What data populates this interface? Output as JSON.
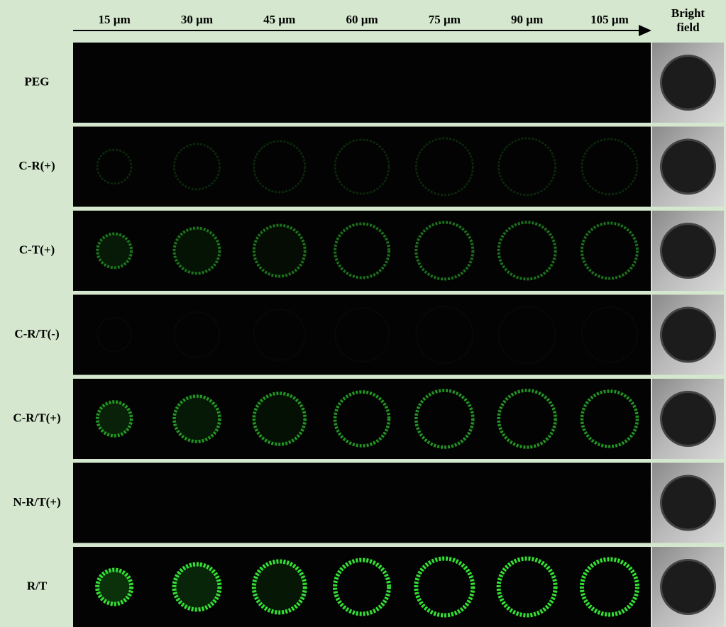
{
  "header": {
    "columns": [
      "15 µm",
      "30 µm",
      "45 µm",
      "60 µm",
      "75 µm",
      "90 µm",
      "105 µm"
    ],
    "bright_field": "Bright field"
  },
  "rows": [
    "PEG",
    "C-R(+)",
    "C-T(+)",
    "C-R/T(-)",
    "C-R/T(+)",
    "N-R/T(+)",
    "R/T"
  ]
}
